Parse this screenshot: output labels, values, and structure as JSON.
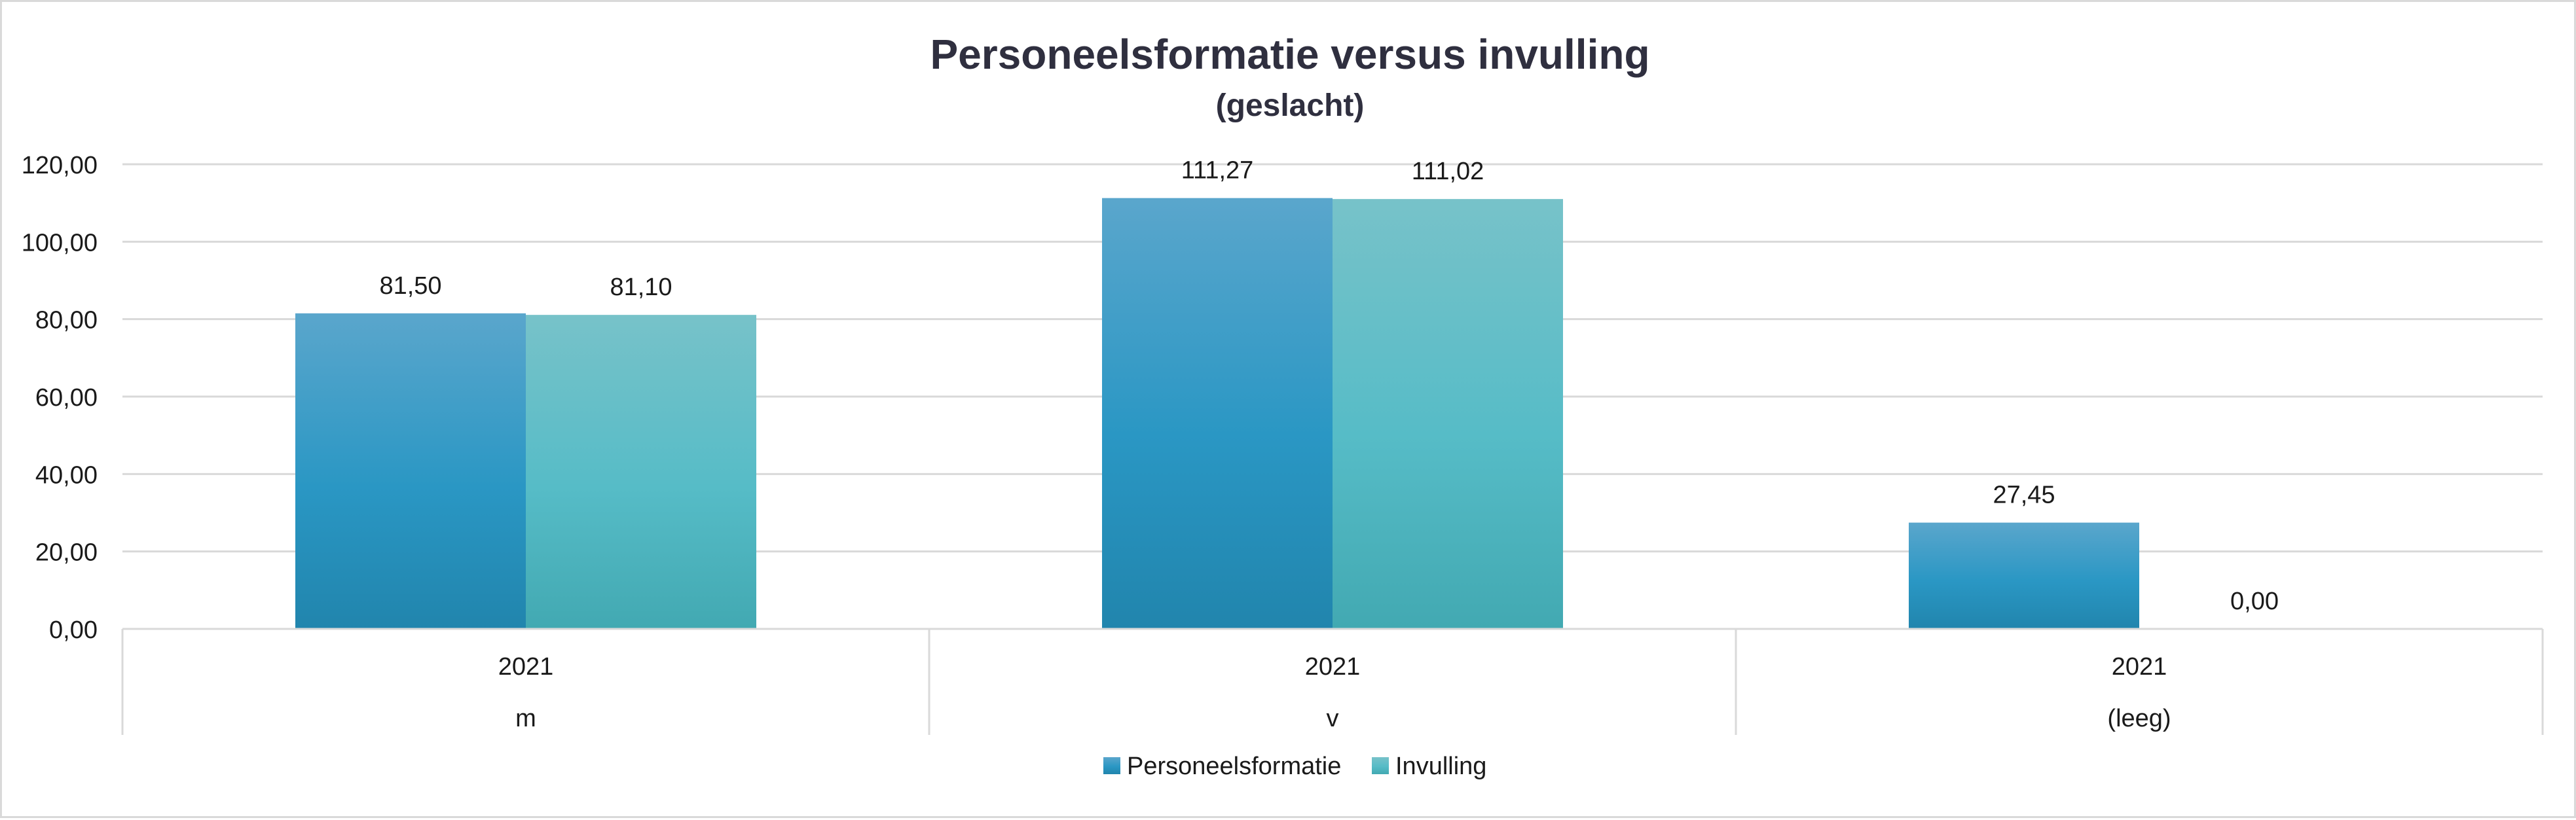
{
  "chart_data": {
    "type": "bar",
    "title": "Personeelsformatie versus invulling",
    "subtitle": "(geslacht)",
    "categories": [
      {
        "year": "2021",
        "group": "m"
      },
      {
        "year": "2021",
        "group": "v"
      },
      {
        "year": "2021",
        "group": "(leeg)"
      }
    ],
    "series": [
      {
        "name": "Personeelsformatie",
        "values": [
          81.5,
          111.27,
          27.45
        ],
        "labels": [
          "81,50",
          "111,27",
          "27,45"
        ],
        "color": "#2b93bd"
      },
      {
        "name": "Invulling",
        "values": [
          81.1,
          111.02,
          0.0
        ],
        "labels": [
          "81,10",
          "111,02",
          "0,00"
        ],
        "color": "#4db8c1"
      }
    ],
    "ylim": [
      0,
      120
    ],
    "yticks": [
      0,
      20,
      40,
      60,
      80,
      100,
      120
    ],
    "ytick_labels": [
      "0,00",
      "20,00",
      "40,00",
      "60,00",
      "80,00",
      "100,00",
      "120,00"
    ],
    "grid": true,
    "legend_position": "bottom"
  }
}
